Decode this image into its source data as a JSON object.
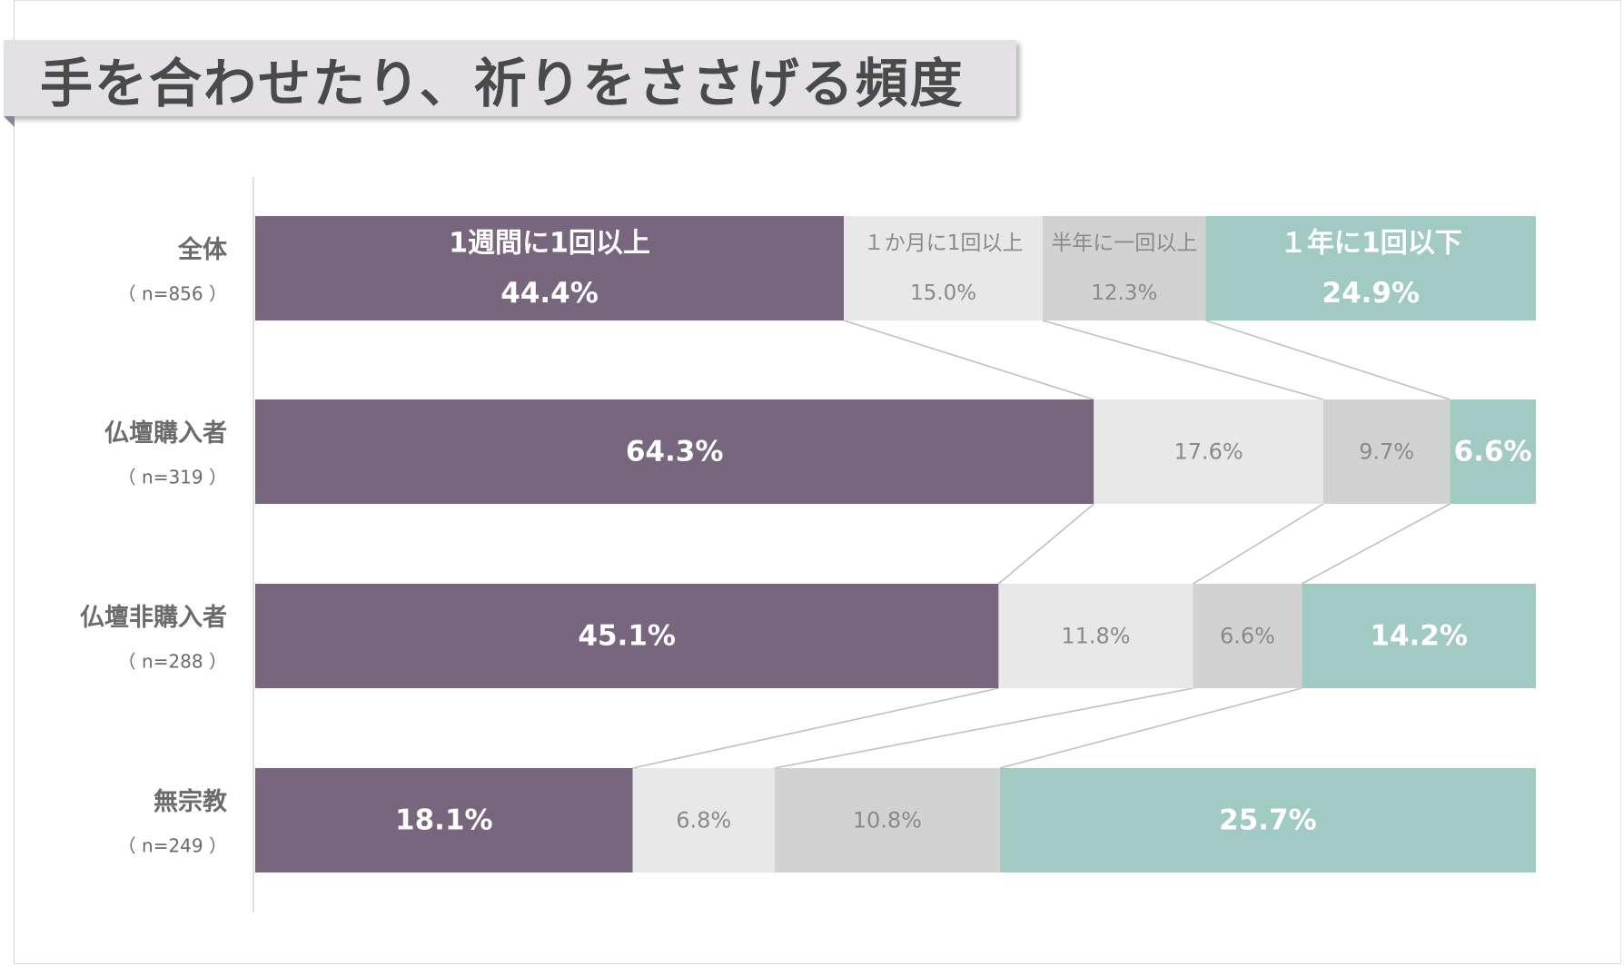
{
  "title": "手を合わせたり、祈りをささげる頻度",
  "colors": {
    "weekly": "#77667d",
    "monthly": "#e8e8e8",
    "half_year": "#d2d2d2",
    "yearly": "#a1cbc2",
    "connector": "#c0c0c0",
    "axis": "#d6d6d6",
    "label_dark": "#6b6b6b",
    "label_light_text": "#8a8a8a",
    "white_text": "#ffffff"
  },
  "chart_data": {
    "type": "bar",
    "orientation": "horizontal",
    "stacked": true,
    "title": "手を合わせたり、祈りをささげる頻度",
    "categories": [
      {
        "label": "全体",
        "n": "（ n=856 ）"
      },
      {
        "label": "仏壇購入者",
        "n": "（ n=319 ）"
      },
      {
        "label": "仏壇非購入者",
        "n": "（ n=288 ）"
      },
      {
        "label": "無宗教",
        "n": "（ n=249 ）"
      }
    ],
    "series": [
      {
        "name": "1週間に1回以上",
        "values": [
          44.4,
          64.3,
          45.1,
          18.1
        ],
        "labels": [
          "44.4%",
          "64.3%",
          "45.1%",
          "18.1%"
        ]
      },
      {
        "name": "１か月に1回以上",
        "values": [
          15.0,
          17.6,
          11.8,
          6.8
        ],
        "labels": [
          "15.0%",
          "17.6%",
          "11.8%",
          "6.8%"
        ]
      },
      {
        "name": "半年に一回以上",
        "values": [
          12.3,
          9.7,
          6.6,
          10.8
        ],
        "labels": [
          "12.3%",
          "9.7%",
          "6.6%",
          "10.8%"
        ]
      },
      {
        "name": "１年に1回以下",
        "values": [
          24.9,
          6.6,
          14.2,
          25.7
        ],
        "labels": [
          "24.9%",
          "6.6%",
          "14.2%",
          "25.7%"
        ]
      }
    ],
    "legend": "inline-first-bar",
    "series_connectors": true,
    "grid": false
  }
}
